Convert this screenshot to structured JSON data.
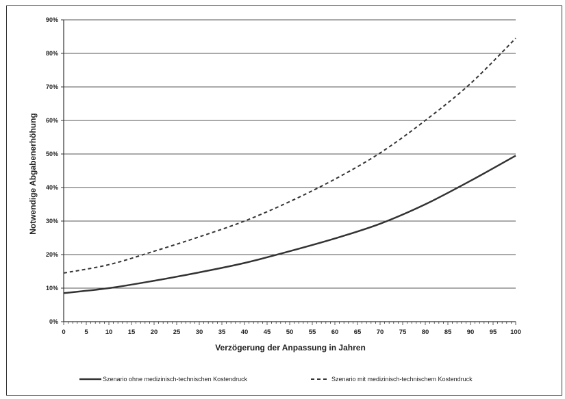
{
  "chart_data": {
    "type": "line",
    "title": "",
    "xlabel": "Verzögerung der Anpassung in Jahren",
    "ylabel": "Notwendige Abgabenerhöhung",
    "xlim": [
      0,
      100
    ],
    "ylim": [
      0,
      90
    ],
    "x_ticks": [
      "0",
      "5",
      "10",
      "15",
      "20",
      "25",
      "30",
      "35",
      "40",
      "45",
      "50",
      "55",
      "60",
      "65",
      "70",
      "75",
      "80",
      "85",
      "90",
      "95",
      "100"
    ],
    "y_ticks": [
      "0%",
      "10%",
      "20%",
      "30%",
      "40%",
      "50%",
      "60%",
      "70%",
      "80%",
      "90%"
    ],
    "grid": "horizontal",
    "legend_position": "bottom",
    "x": [
      0,
      10,
      20,
      30,
      40,
      50,
      60,
      70,
      80,
      90,
      100
    ],
    "series": [
      {
        "name": "Szenario ohne medizinisch-technischen Kostendruck",
        "style": "solid",
        "values": [
          8.5,
          10.0,
          12.2,
          14.7,
          17.5,
          21.0,
          24.8,
          29.2,
          35.0,
          42.0,
          49.5
        ]
      },
      {
        "name": "Szenario mit medizinisch-technischem Kostendruck",
        "style": "dashed",
        "values": [
          14.5,
          17.0,
          21.0,
          25.3,
          30.0,
          35.8,
          42.5,
          50.3,
          60.0,
          71.0,
          84.5
        ]
      }
    ]
  },
  "colors": {
    "line": "#333333",
    "grid": "#555555",
    "axis": "#333333"
  }
}
